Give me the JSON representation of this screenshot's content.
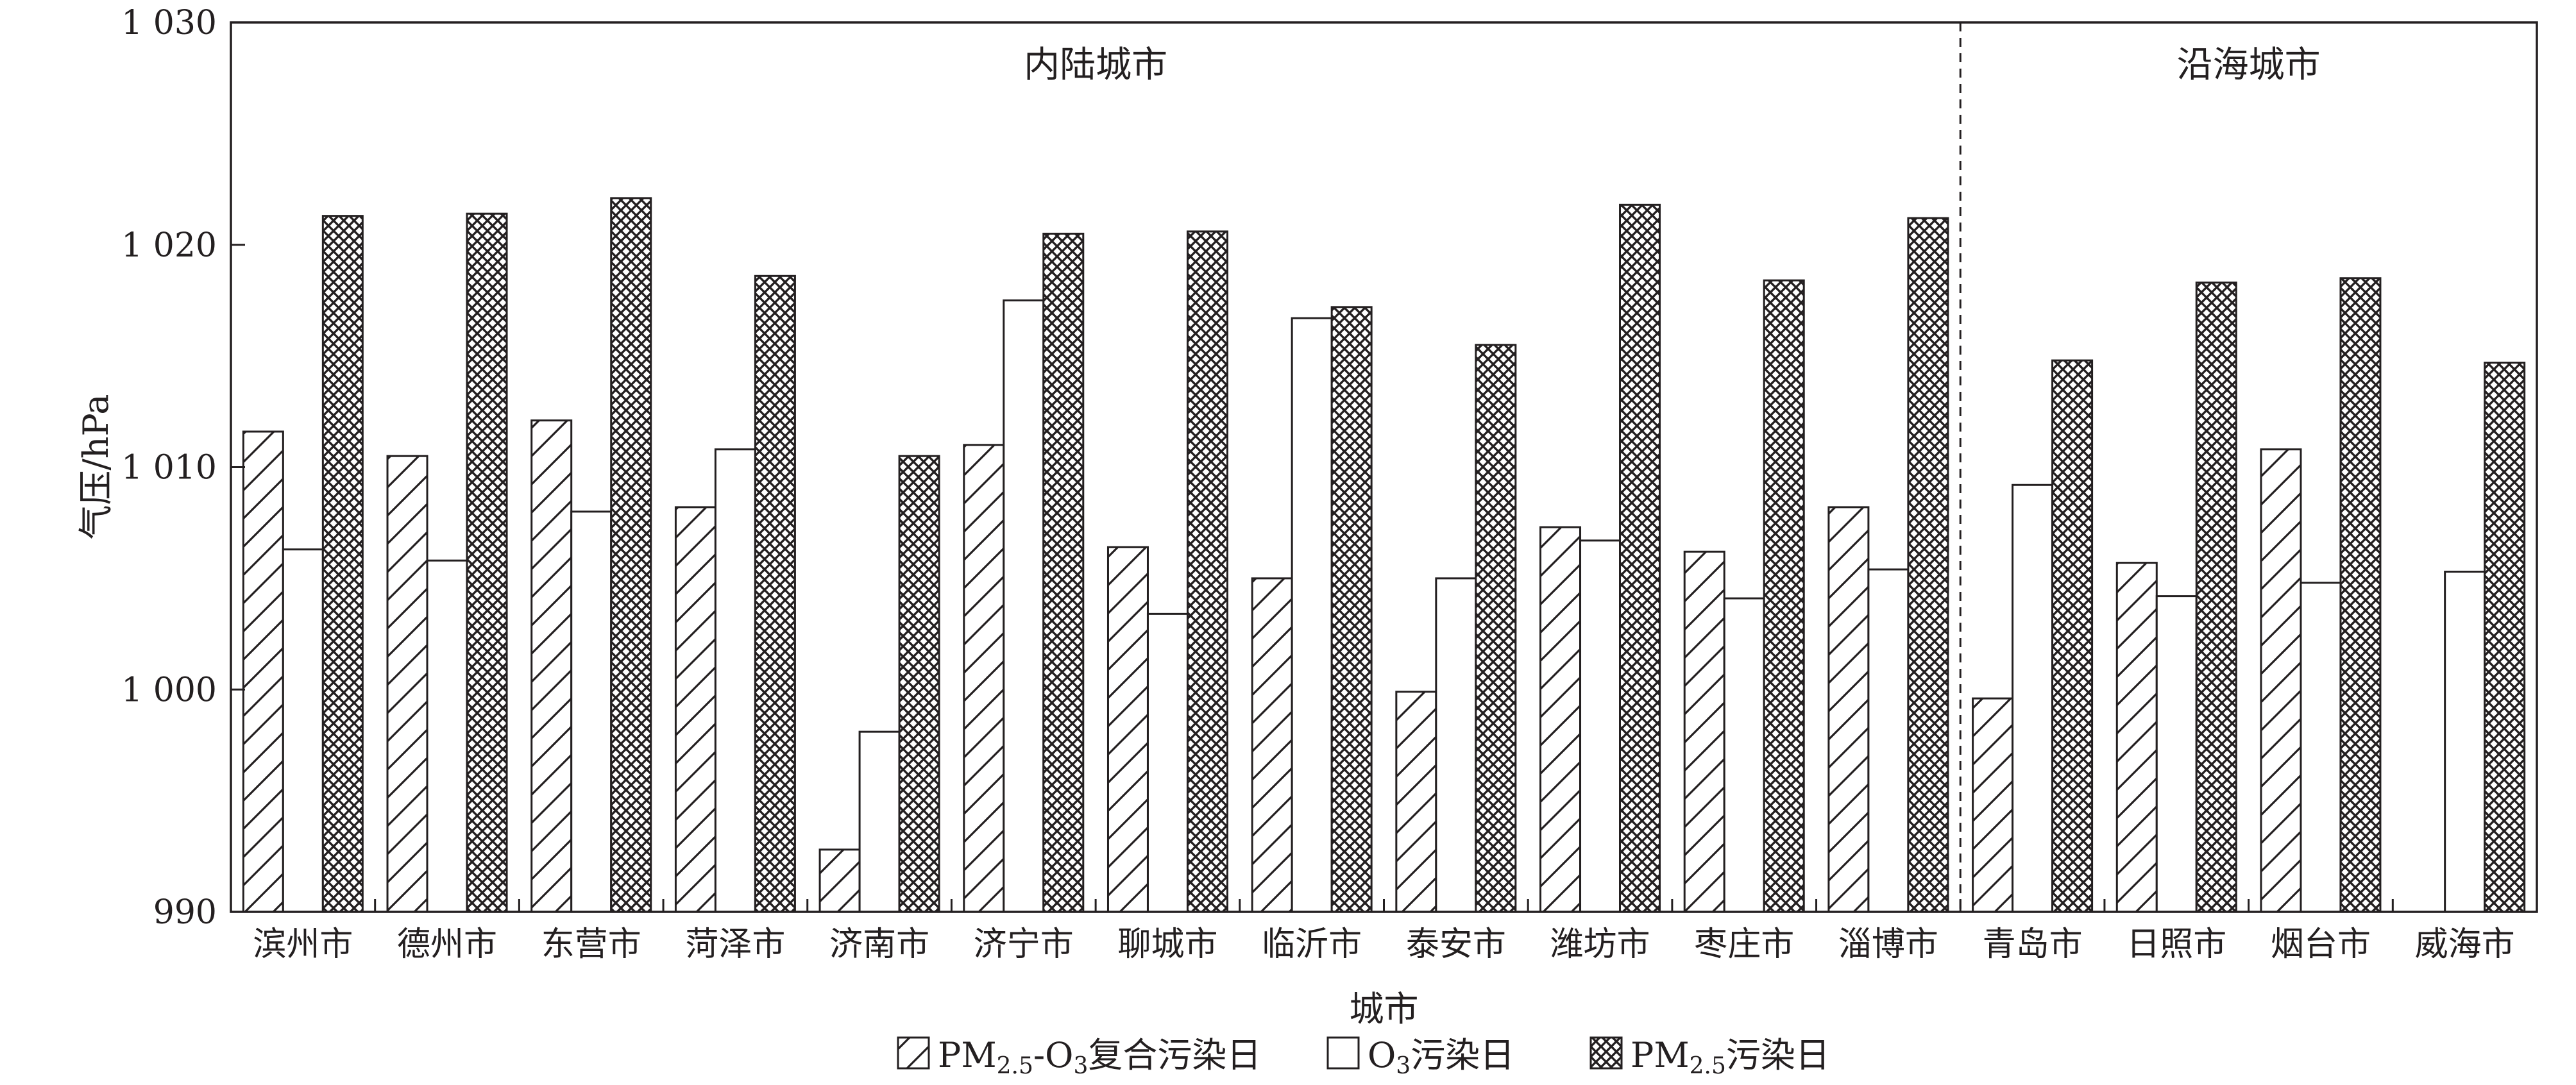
{
  "chart_data": {
    "type": "bar",
    "title": "",
    "xlabel": "城市",
    "ylabel": "气压/hPa",
    "ylim": [
      990,
      1030
    ],
    "yticks": [
      990,
      1000,
      1010,
      1020,
      1030
    ],
    "ytick_labels": [
      "990",
      "1 000",
      "1 010",
      "1 020",
      "1 030"
    ],
    "categories": [
      "滨州市",
      "德州市",
      "东营市",
      "菏泽市",
      "济南市",
      "济宁市",
      "聊城市",
      "临沂市",
      "泰安市",
      "潍坊市",
      "枣庄市",
      "淄博市",
      "青岛市",
      "日照市",
      "烟台市",
      "威海市"
    ],
    "regions": [
      {
        "label": "内陆城市",
        "categories_from": 0,
        "categories_to": 11
      },
      {
        "label": "沿海城市",
        "categories_from": 12,
        "categories_to": 15
      }
    ],
    "series": [
      {
        "name": "PM2.5-O3复合污染日",
        "pattern": "diagonal-hatch",
        "values": [
          1011.6,
          1010.5,
          1012.1,
          1008.2,
          992.8,
          1011.0,
          1006.4,
          1005.0,
          999.9,
          1007.3,
          1006.2,
          1008.2,
          999.6,
          1005.7,
          1010.8,
          null
        ]
      },
      {
        "name": "O3污染日",
        "pattern": "empty",
        "values": [
          1006.3,
          1005.8,
          1008.0,
          1010.8,
          998.1,
          1017.5,
          1003.4,
          1016.7,
          1005.0,
          1006.7,
          1004.1,
          1005.4,
          1009.2,
          1004.2,
          1004.8,
          1005.3
        ]
      },
      {
        "name": "PM2.5污染日",
        "pattern": "cross-hatch",
        "values": [
          1021.3,
          1021.4,
          1022.1,
          1018.6,
          1010.5,
          1020.5,
          1020.6,
          1017.2,
          1015.5,
          1021.8,
          1018.4,
          1021.2,
          1014.8,
          1018.3,
          1018.5,
          1014.7
        ]
      }
    ],
    "legend": {
      "placement": "bottom",
      "items": [
        {
          "main": "PM",
          "sub": "2.5",
          "mid": "-O",
          "sub2": "3",
          "rest": "复合污染日"
        },
        {
          "main": "O",
          "sub": "3",
          "mid": "",
          "sub2": "",
          "rest": "污染日"
        },
        {
          "main": "PM",
          "sub": "2.5",
          "mid": "",
          "sub2": "",
          "rest": "污染日"
        }
      ]
    },
    "grid": false
  }
}
